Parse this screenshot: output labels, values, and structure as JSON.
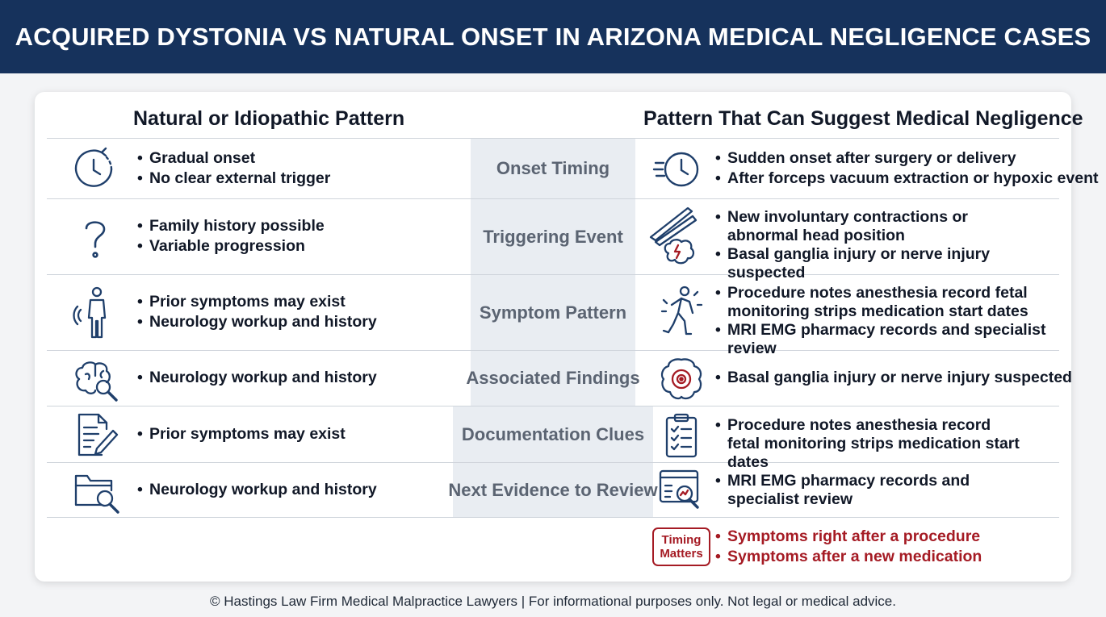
{
  "title": "ACQUIRED DYSTONIA VS NATURAL ONSET IN ARIZONA MEDICAL NEGLIGENCE CASES",
  "left_heading": "Natural or Idiopathic Pattern",
  "right_heading": "Pattern That Can Suggest Medical Negligence",
  "rows": [
    {
      "category": "Onset Timing",
      "left_icon": "clock-icon",
      "left": [
        "Gradual onset",
        "No clear external trigger"
      ],
      "right_icon": "fast-clock-icon",
      "right": [
        "Sudden onset after surgery or delivery",
        "After forceps vacuum extraction or hypoxic event"
      ]
    },
    {
      "category": "Triggering Event",
      "left_icon": "question-mark-icon",
      "left": [
        "Family history possible",
        "Variable progression"
      ],
      "right_icon": "forceps-brain-icon",
      "right": [
        "New involuntary contractions or abnormal head position",
        "Basal ganglia injury or nerve injury suspected"
      ]
    },
    {
      "category": "Symptom Pattern",
      "left_icon": "person-icon",
      "left": [
        "Prior symptoms may exist",
        "Neurology workup and history"
      ],
      "right_icon": "moving-person-icon",
      "right": [
        "Procedure notes anesthesia record fetal monitoring strips medication start dates",
        "MRI EMG pharmacy records and specialist review"
      ]
    },
    {
      "category": "Associated Findings",
      "left_icon": "brain-magnifier-icon",
      "left": [
        "Neurology workup and history"
      ],
      "right_icon": "brain-target-icon",
      "right": [
        "Basal ganglia injury or nerve injury suspected"
      ]
    },
    {
      "category": "Documentation Clues",
      "left_icon": "document-pen-icon",
      "left": [
        "Prior symptoms may exist"
      ],
      "right_icon": "clipboard-checklist-icon",
      "right": [
        "Procedure notes anesthesia record fetal monitoring strips medication start dates"
      ]
    },
    {
      "category": "Next Evidence to Review",
      "left_icon": "folder-search-icon",
      "left": [
        "Neurology workup and history"
      ],
      "right_icon": "scan-report-icon",
      "right": [
        "MRI EMG pharmacy records and specialist review"
      ]
    }
  ],
  "timing_badge": [
    "Timing",
    "Matters"
  ],
  "timing_notes": [
    "Symptoms right after a procedure",
    "Symptoms after a new medication"
  ],
  "footer": "© Hastings Law Firm Medical Malpractice Lawyers | For informational purposes only. Not legal or medical advice.",
  "colors": {
    "banner": "#16325c",
    "icon": "#1f3f6b",
    "accent_red": "#a51b24",
    "middle_column": "#e9edf2"
  }
}
